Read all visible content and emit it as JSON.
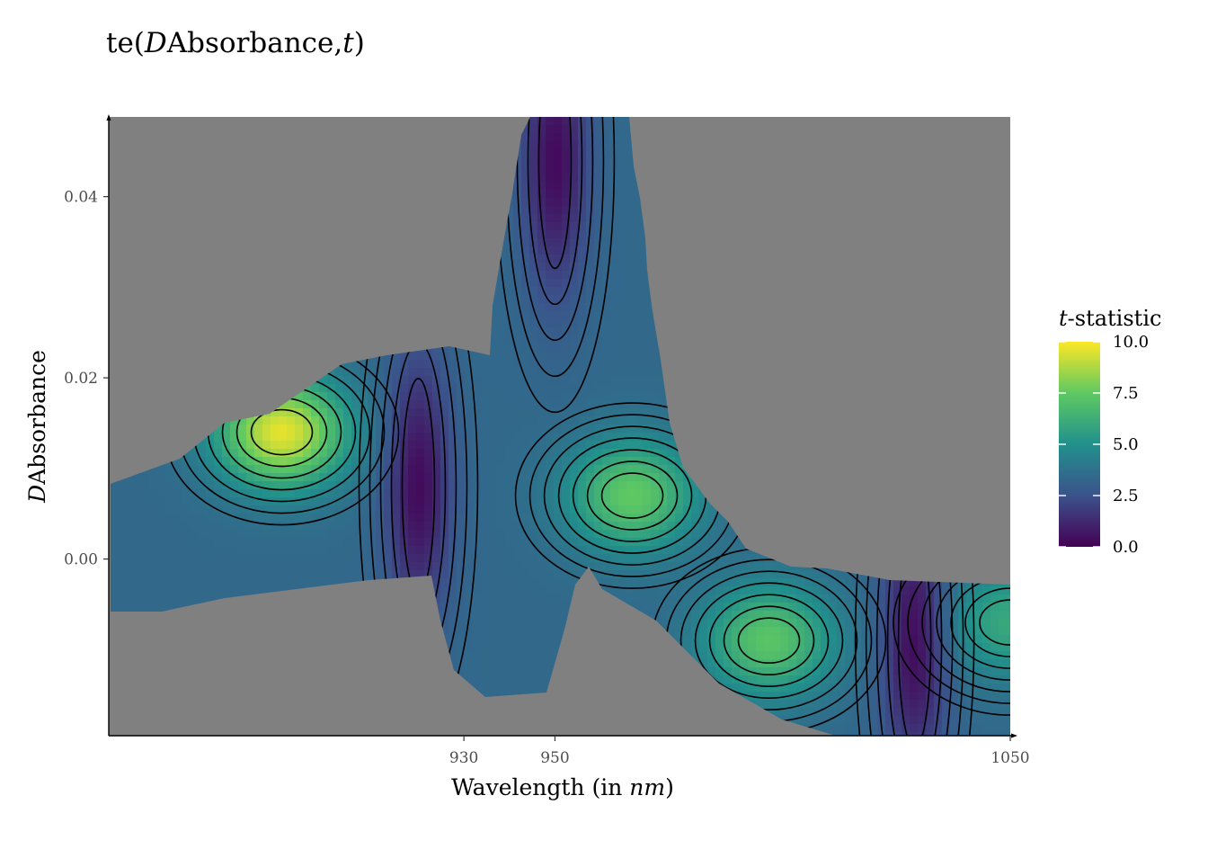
{
  "chart_data": {
    "type": "heatmap",
    "title": {
      "pre": "te(",
      "var1": "D",
      "mid": "Absorbance,",
      "var2": "t",
      "post": ")"
    },
    "xlabel": {
      "pre": "Wavelength (in ",
      "unit": "nm",
      "post": ")"
    },
    "ylabel": {
      "var": "D",
      "rest": "Absorbance"
    },
    "x_ticks": [
      930,
      950,
      1050
    ],
    "y_ticks": [
      0.0,
      0.02,
      0.04
    ],
    "y_tick_labels": [
      "0.00",
      "0.02",
      "0.04"
    ],
    "xlim": [
      852,
      1050
    ],
    "ylim": [
      -0.0195,
      0.0488
    ],
    "legend": {
      "title_var": "t",
      "title_rest": "-statistic",
      "position": "right",
      "range": [
        0.0,
        10.0
      ],
      "ticks": [
        0.0,
        2.5,
        5.0,
        7.5,
        10.0
      ],
      "tick_labels": [
        "0.0",
        "2.5",
        "5.0",
        "7.5",
        "10.0"
      ],
      "colors": [
        "#440154",
        "#3b528b",
        "#21918c",
        "#5ec962",
        "#fde725"
      ]
    },
    "background_color": "#808080",
    "peaks": [
      {
        "x": 890,
        "y": 0.014,
        "t": 9.6
      },
      {
        "x": 967,
        "y": 0.007,
        "t": 7.5
      },
      {
        "x": 997,
        "y": -0.009,
        "t": 7.3
      },
      {
        "x": 1050,
        "y": -0.007,
        "t": 6.0
      }
    ],
    "troughs": [
      {
        "x": 920,
        "y": 0.008,
        "t": 0.3
      },
      {
        "x": 950,
        "y": 0.044,
        "t": 0.3
      },
      {
        "x": 1029,
        "y": -0.009,
        "t": 0.2
      }
    ]
  }
}
